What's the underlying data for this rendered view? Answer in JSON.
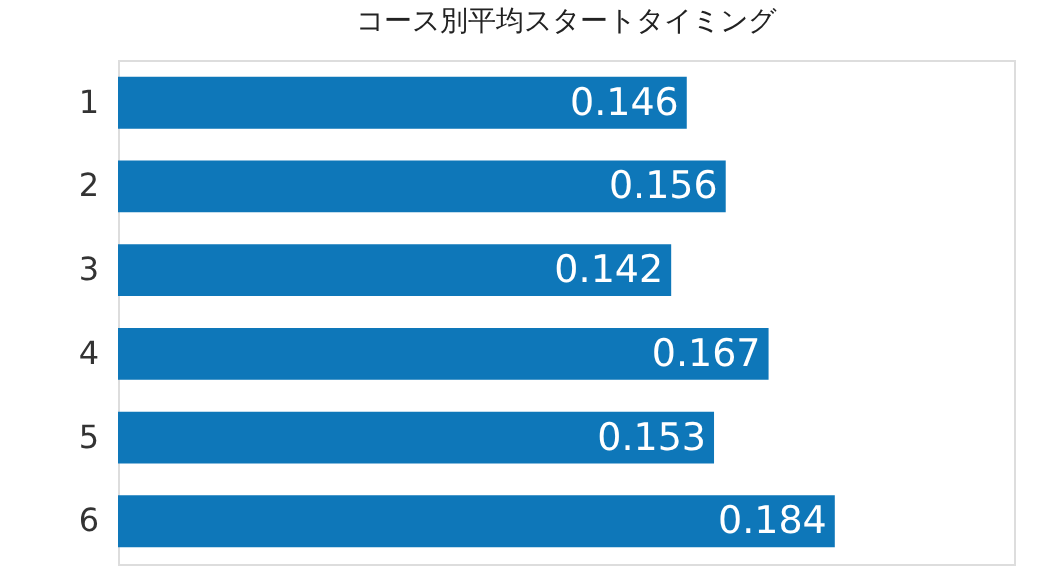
{
  "chart_data": {
    "type": "bar",
    "orientation": "horizontal",
    "title": "コース別平均スタートタイミング",
    "categories": [
      "1",
      "2",
      "3",
      "4",
      "5",
      "6"
    ],
    "values": [
      0.146,
      0.156,
      0.142,
      0.167,
      0.153,
      0.184
    ],
    "color": "#0e77b9",
    "xlim": [
      0,
      0.23
    ],
    "data_labels": true,
    "tick_labels": "y"
  }
}
